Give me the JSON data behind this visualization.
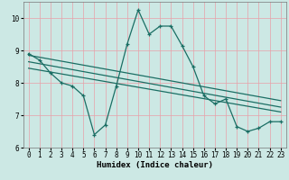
{
  "xlabel": "Humidex (Indice chaleur)",
  "bg_color": "#cce8e4",
  "grid_color": "#e8a0a8",
  "line_color": "#1a6e64",
  "xlim": [
    -0.5,
    23.5
  ],
  "ylim": [
    6.0,
    10.5
  ],
  "xticks": [
    0,
    1,
    2,
    3,
    4,
    5,
    6,
    7,
    8,
    9,
    10,
    11,
    12,
    13,
    14,
    15,
    16,
    17,
    18,
    19,
    20,
    21,
    22,
    23
  ],
  "yticks": [
    6,
    7,
    8,
    9,
    10
  ],
  "data_x": [
    0,
    1,
    2,
    3,
    4,
    5,
    6,
    7,
    8,
    9,
    10,
    11,
    12,
    13,
    14,
    15,
    16,
    17,
    18,
    19,
    20,
    21,
    22,
    23
  ],
  "data_y": [
    8.9,
    8.7,
    8.3,
    8.0,
    7.9,
    7.6,
    6.4,
    6.7,
    7.9,
    9.2,
    10.25,
    9.5,
    9.75,
    9.75,
    9.15,
    8.5,
    7.6,
    7.35,
    7.5,
    6.65,
    6.5,
    6.6,
    6.8,
    6.8
  ],
  "trend1_x": [
    0,
    23
  ],
  "trend1_y": [
    8.85,
    7.45
  ],
  "trend2_x": [
    0,
    23
  ],
  "trend2_y": [
    8.65,
    7.25
  ],
  "trend3_x": [
    0,
    23
  ],
  "trend3_y": [
    8.45,
    7.1
  ],
  "linewidth": 0.9,
  "marker_size": 3.5,
  "label_fontsize": 6.5,
  "tick_fontsize": 5.5
}
